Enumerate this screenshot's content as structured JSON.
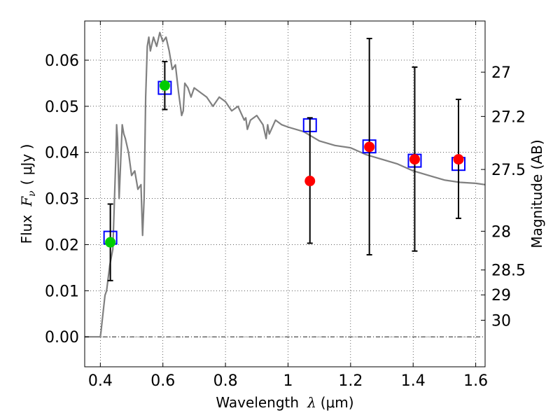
{
  "chart_data": {
    "type": "scatter",
    "xlabel_prefix": "Wavelength",
    "xlabel_symbol": "λ",
    "xlabel_unit": "(μm)",
    "ylabel_prefix": "Flux",
    "ylabel_symbol": "F",
    "ylabel_sub": "ν",
    "ylabel_unit": "( μJy )",
    "y2label": "Magnitude (AB)",
    "xlim": [
      0.35,
      1.63
    ],
    "ylim": [
      -0.0065,
      0.0685
    ],
    "grid": true,
    "x_ticks": [
      {
        "value": 0.4,
        "label": "0.4"
      },
      {
        "value": 0.6,
        "label": "0.6"
      },
      {
        "value": 0.8,
        "label": "0.8"
      },
      {
        "value": 1.0,
        "label": "1"
      },
      {
        "value": 1.2,
        "label": "1.2"
      },
      {
        "value": 1.4,
        "label": "1.4"
      },
      {
        "value": 1.6,
        "label": "1.6"
      }
    ],
    "y_ticks": [
      {
        "value": 0.0,
        "label": "0.00"
      },
      {
        "value": 0.01,
        "label": "0.01"
      },
      {
        "value": 0.02,
        "label": "0.02"
      },
      {
        "value": 0.03,
        "label": "0.03"
      },
      {
        "value": 0.04,
        "label": "0.04"
      },
      {
        "value": 0.05,
        "label": "0.05"
      },
      {
        "value": 0.06,
        "label": "0.06"
      }
    ],
    "mag_ticks": [
      {
        "value": 0.0574,
        "label": "27"
      },
      {
        "value": 0.0478,
        "label": "27.2"
      },
      {
        "value": 0.0363,
        "label": "27.5"
      },
      {
        "value": 0.0229,
        "label": "28"
      },
      {
        "value": 0.0145,
        "label": "28.5"
      },
      {
        "value": 0.0091,
        "label": "29"
      },
      {
        "value": 0.0036,
        "label": "30"
      }
    ],
    "model_spectrum": {
      "color": "#808080",
      "x": [
        0.35,
        0.4,
        0.402,
        0.41,
        0.415,
        0.42,
        0.43,
        0.44,
        0.45,
        0.452,
        0.455,
        0.46,
        0.47,
        0.475,
        0.48,
        0.49,
        0.5,
        0.51,
        0.52,
        0.53,
        0.535,
        0.54,
        0.545,
        0.55,
        0.555,
        0.56,
        0.57,
        0.58,
        0.59,
        0.6,
        0.61,
        0.62,
        0.63,
        0.64,
        0.65,
        0.66,
        0.665,
        0.67,
        0.68,
        0.69,
        0.7,
        0.72,
        0.74,
        0.76,
        0.78,
        0.8,
        0.82,
        0.84,
        0.86,
        0.865,
        0.87,
        0.88,
        0.9,
        0.92,
        0.93,
        0.935,
        0.94,
        0.96,
        0.98,
        1.0,
        1.05,
        1.1,
        1.15,
        1.2,
        1.25,
        1.3,
        1.35,
        1.4,
        1.45,
        1.5,
        1.55,
        1.6,
        1.63
      ],
      "y": [
        0.0,
        0.0,
        0.001,
        0.006,
        0.009,
        0.01,
        0.0155,
        0.019,
        0.04,
        0.046,
        0.043,
        0.03,
        0.046,
        0.044,
        0.043,
        0.04,
        0.035,
        0.036,
        0.032,
        0.033,
        0.022,
        0.03,
        0.052,
        0.063,
        0.065,
        0.062,
        0.065,
        0.063,
        0.066,
        0.064,
        0.065,
        0.062,
        0.058,
        0.059,
        0.053,
        0.048,
        0.049,
        0.055,
        0.054,
        0.052,
        0.054,
        0.053,
        0.052,
        0.05,
        0.052,
        0.051,
        0.049,
        0.05,
        0.047,
        0.0475,
        0.045,
        0.047,
        0.048,
        0.046,
        0.043,
        0.046,
        0.044,
        0.047,
        0.046,
        0.0455,
        0.0445,
        0.0425,
        0.0415,
        0.041,
        0.0395,
        0.0385,
        0.0375,
        0.036,
        0.035,
        0.034,
        0.0335,
        0.0333,
        0.033
      ]
    },
    "model_squares": {
      "color": "#0000ff",
      "points": [
        {
          "x": 0.432,
          "y": 0.0215
        },
        {
          "x": 0.606,
          "y": 0.054
        },
        {
          "x": 1.07,
          "y": 0.0459
        },
        {
          "x": 1.26,
          "y": 0.0413
        },
        {
          "x": 1.405,
          "y": 0.0382
        },
        {
          "x": 1.545,
          "y": 0.0375
        }
      ]
    },
    "observations": [
      {
        "x": 0.432,
        "y": 0.0205,
        "yerr_low": 0.0122,
        "yerr_high": 0.0288,
        "color": "#00cc00"
      },
      {
        "x": 0.606,
        "y": 0.0545,
        "yerr_low": 0.0493,
        "yerr_high": 0.0597,
        "color": "#00cc00"
      },
      {
        "x": 1.07,
        "y": 0.0338,
        "yerr_low": 0.0203,
        "yerr_high": 0.0475,
        "color": "#ff0000"
      },
      {
        "x": 1.26,
        "y": 0.0412,
        "yerr_low": 0.0178,
        "yerr_high": 0.0647,
        "color": "#ff0000"
      },
      {
        "x": 1.405,
        "y": 0.0385,
        "yerr_low": 0.0186,
        "yerr_high": 0.0585,
        "color": "#ff0000"
      },
      {
        "x": 1.545,
        "y": 0.0385,
        "yerr_low": 0.0257,
        "yerr_high": 0.0515,
        "color": "#ff0000"
      }
    ]
  }
}
